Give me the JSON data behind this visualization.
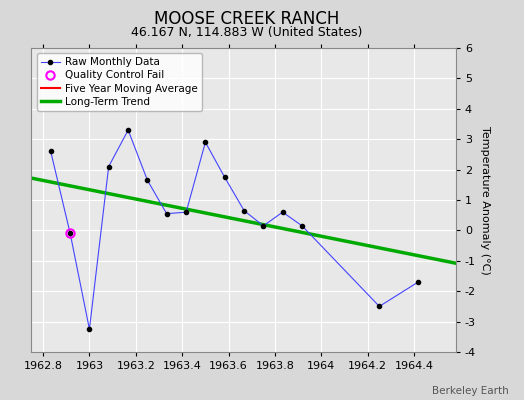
{
  "title": "MOOSE CREEK RANCH",
  "subtitle": "46.167 N, 114.883 W (United States)",
  "watermark": "Berkeley Earth",
  "ylabel": "Temperature Anomaly (°C)",
  "xlim": [
    1962.75,
    1964.58
  ],
  "ylim": [
    -4,
    6
  ],
  "yticks": [
    -4,
    -3,
    -2,
    -1,
    0,
    1,
    2,
    3,
    4,
    5,
    6
  ],
  "xticks": [
    1962.8,
    1963.0,
    1963.2,
    1963.4,
    1963.6,
    1963.8,
    1964.0,
    1964.2,
    1964.4
  ],
  "xtick_labels": [
    "1962.8",
    "1963",
    "1963.2",
    "1963.4",
    "1963.6",
    "1963.8",
    "1964",
    "1964.2",
    "1964.4"
  ],
  "raw_x": [
    1962.833,
    1962.917,
    1963.0,
    1963.083,
    1963.167,
    1963.25,
    1963.333,
    1963.417,
    1963.5,
    1963.583,
    1963.667,
    1963.75,
    1963.833,
    1963.917,
    1964.25,
    1964.417
  ],
  "raw_y": [
    2.6,
    -0.1,
    -3.25,
    2.1,
    3.3,
    1.65,
    0.55,
    0.6,
    2.9,
    1.75,
    0.65,
    0.15,
    0.6,
    0.15,
    -2.5,
    -1.7
  ],
  "qc_fail_x": [
    1962.917
  ],
  "qc_fail_y": [
    -0.1
  ],
  "trend_x": [
    1962.75,
    1964.58
  ],
  "trend_y": [
    1.72,
    -1.08
  ],
  "moving_avg_x": [],
  "moving_avg_y": [],
  "raw_line_color": "#4444ff",
  "raw_marker_color": "black",
  "raw_marker_size": 3,
  "qc_color": "magenta",
  "trend_color": "#00aa00",
  "moving_avg_color": "red",
  "bg_color": "#d8d8d8",
  "plot_bg_color": "#e8e8e8",
  "grid_color": "white",
  "title_fontsize": 12,
  "subtitle_fontsize": 9,
  "tick_fontsize": 8,
  "ylabel_fontsize": 8
}
